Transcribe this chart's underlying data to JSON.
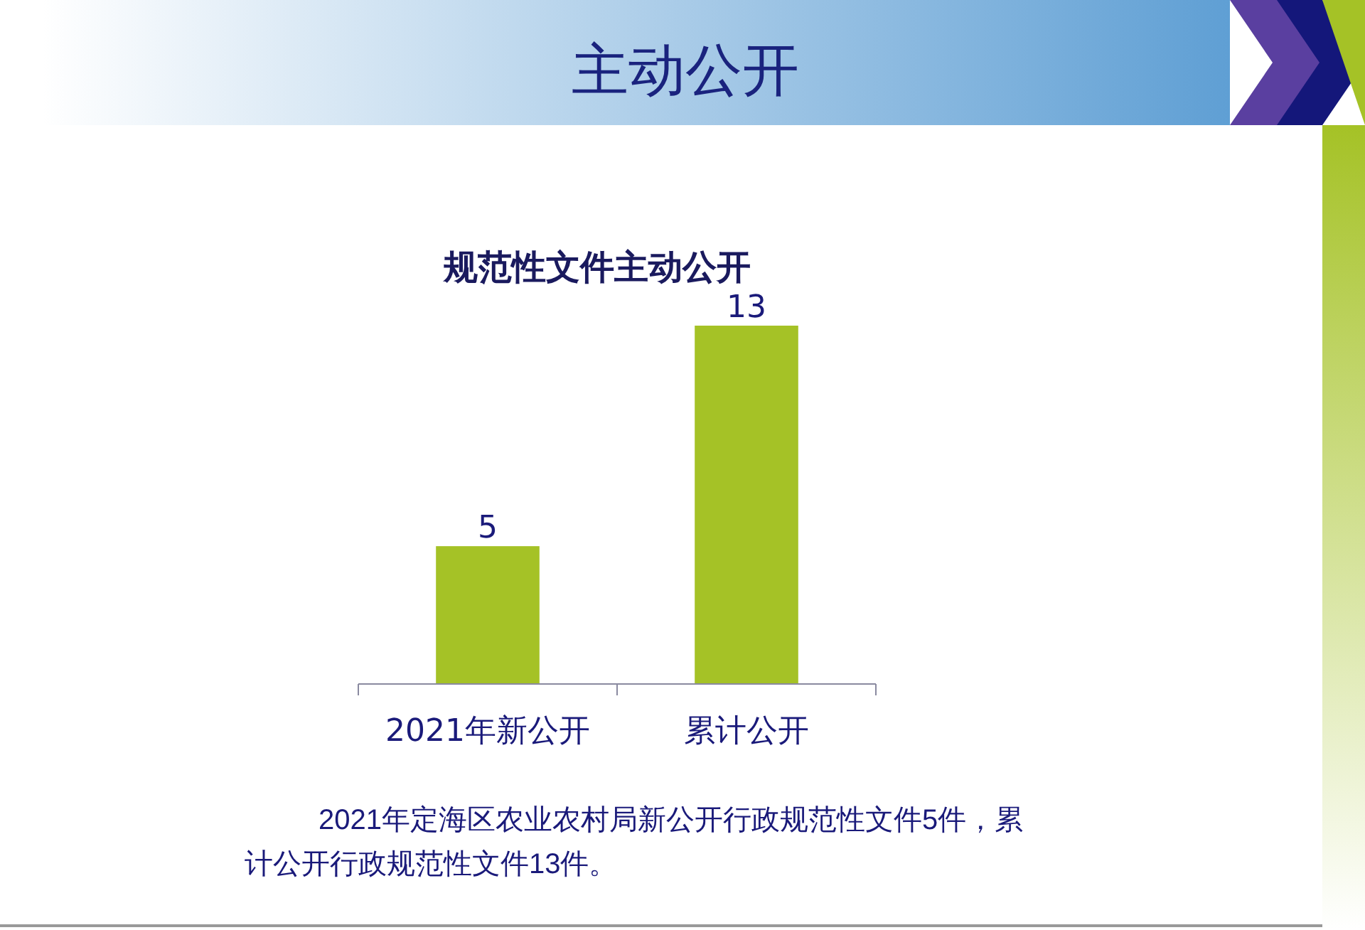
{
  "chart_data": {
    "type": "bar",
    "title": "主动公开",
    "subtitle": "规范性文件主动公开",
    "categories": [
      "2021年新公开",
      "累计公开"
    ],
    "values": [
      5,
      13
    ],
    "color": "#a5c226",
    "data_labels": true,
    "annotations": [
      "2021年定海区农业农村局新公开行政规范性文件5件，累计公开行政规范性文件13件。"
    ]
  }
}
